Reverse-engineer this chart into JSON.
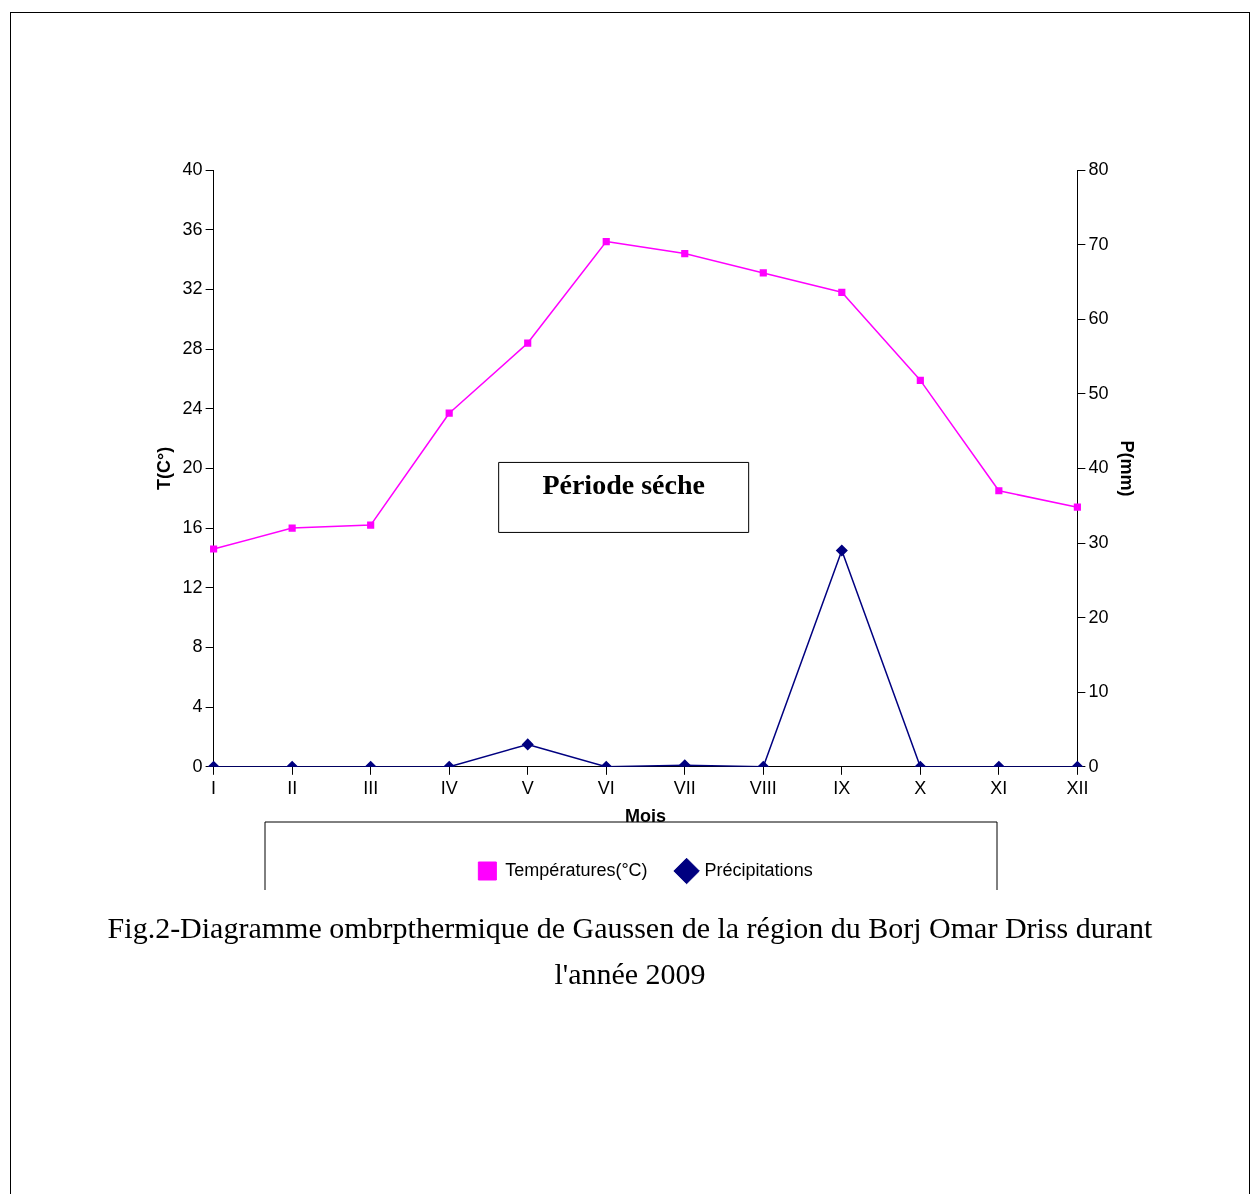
{
  "chart_data": {
    "type": "line",
    "xlabel": "Mois",
    "ylabel": "T(C°)",
    "y2label": "P(mm)",
    "categories": [
      "I",
      "II",
      "III",
      "IV",
      "V",
      "VI",
      "VII",
      "VIII",
      "IX",
      "X",
      "XI",
      "XII"
    ],
    "series": [
      {
        "name": "Températures(°C)",
        "color": "#ff00ff",
        "marker": "square",
        "values": [
          14.6,
          16.0,
          16.2,
          23.7,
          28.4,
          35.2,
          34.4,
          33.1,
          31.8,
          25.9,
          18.5,
          17.4
        ]
      },
      {
        "name": "Précipitations",
        "color": "#000080",
        "marker": "diamond",
        "axis": "y2",
        "values": [
          0,
          0,
          0,
          0,
          3,
          0,
          0.2,
          0,
          29,
          0,
          0,
          0
        ]
      }
    ],
    "ylim": [
      0,
      40
    ],
    "yticks": [
      0,
      4,
      8,
      12,
      16,
      20,
      24,
      28,
      32,
      36,
      40
    ],
    "y2lim": [
      0,
      80
    ],
    "y2ticks": [
      0,
      10,
      20,
      30,
      40,
      50,
      60,
      70,
      80
    ],
    "grid": false,
    "legend": "bottom",
    "line_style": "solid",
    "annotations": [
      "Période séche",
      "Fig.2-Diagramme ombrpthermique de Gaussen de la région du Borj Omar Driss durant l'année 2009"
    ]
  }
}
